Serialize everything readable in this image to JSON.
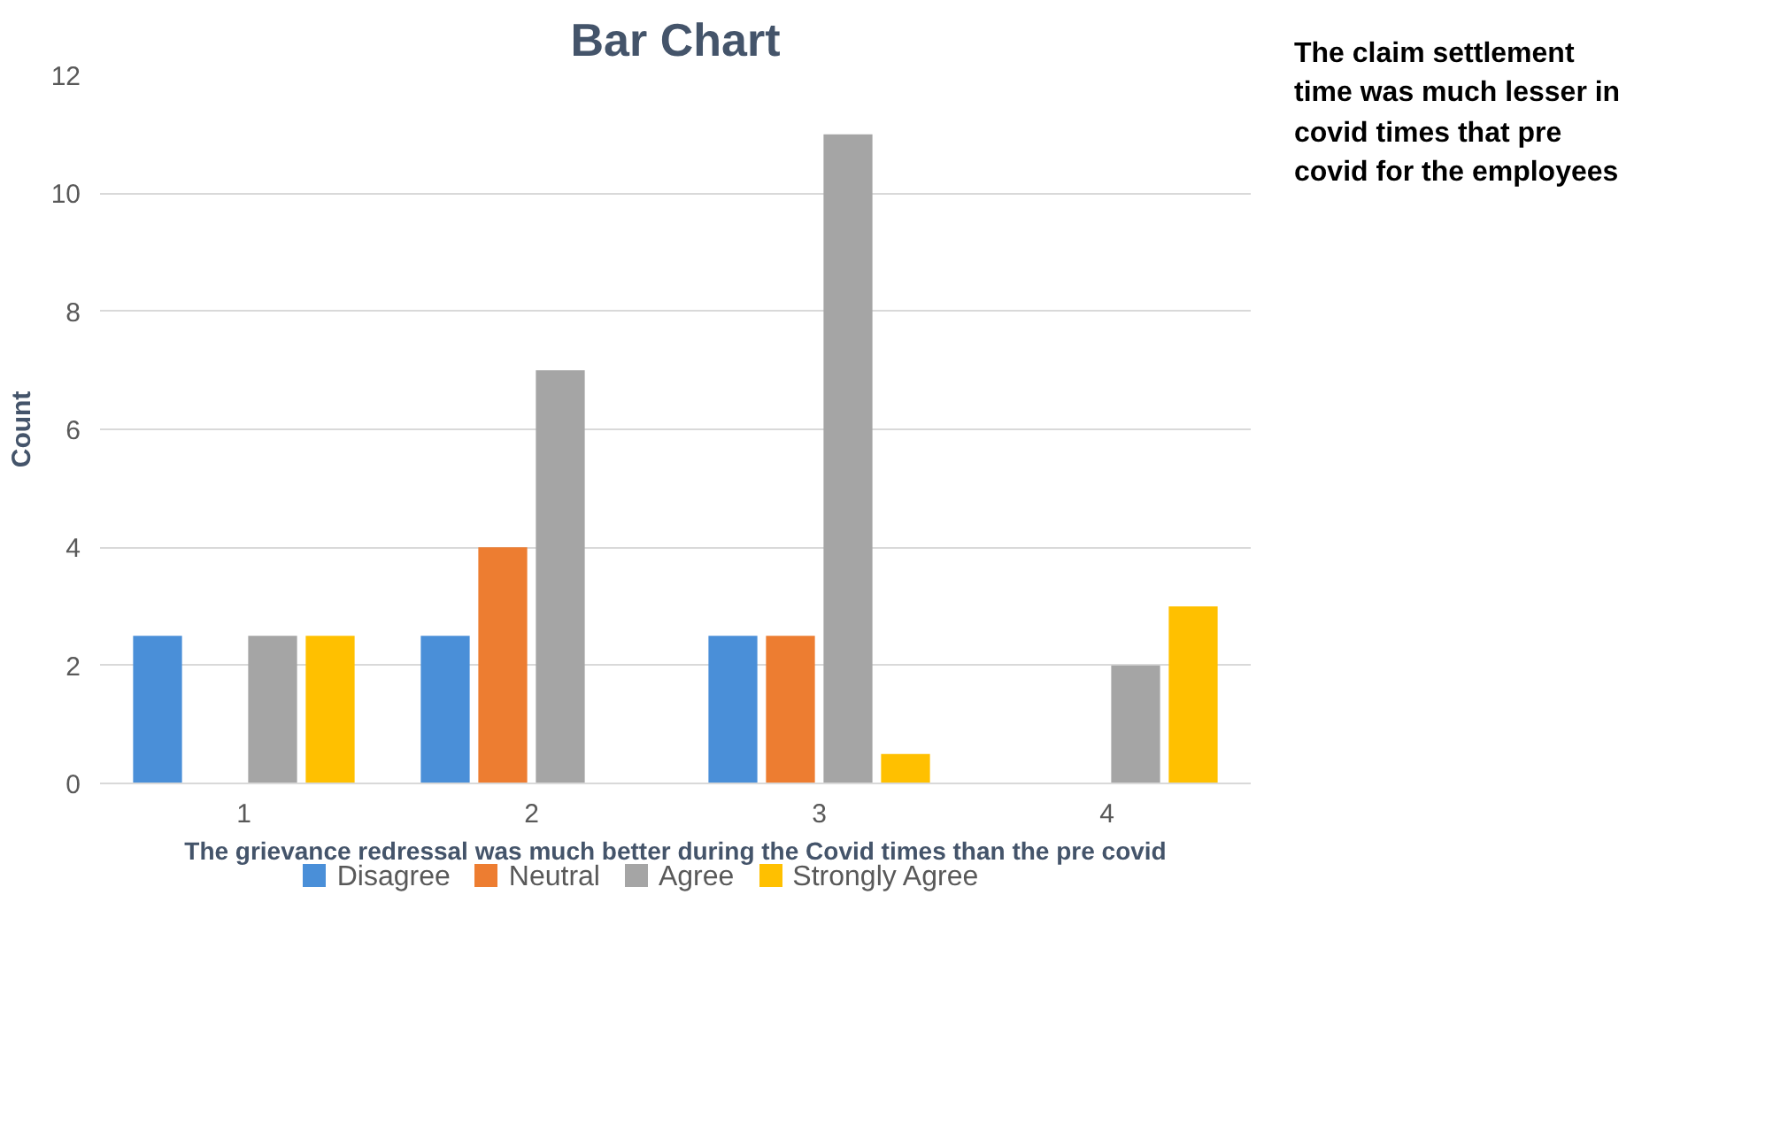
{
  "chart_data": {
    "type": "bar",
    "title": "Bar Chart",
    "xlabel": "The grievance redressal was much better during the Covid times than the pre covid",
    "ylabel": "Count",
    "categories": [
      "1",
      "2",
      "3",
      "4"
    ],
    "series": [
      {
        "name": "Disagree",
        "color": "#4a8fd8",
        "values": [
          2.5,
          2.5,
          2.5,
          null
        ]
      },
      {
        "name": "Neutral",
        "color": "#ed7d31",
        "values": [
          null,
          4,
          2.5,
          null
        ]
      },
      {
        "name": "Agree",
        "color": "#a5a5a5",
        "values": [
          2.5,
          7,
          11,
          2
        ]
      },
      {
        "name": "Strongly Agree",
        "color": "#ffc000",
        "values": [
          2.5,
          null,
          0.5,
          3
        ]
      }
    ],
    "ylim": [
      0,
      12
    ],
    "yticks": [
      0,
      2,
      4,
      6,
      8,
      10,
      12
    ],
    "grid": "y",
    "legend": "bottom",
    "annotations": [
      "The claim settlement time was much lesser in covid times that pre covid for the employees"
    ]
  }
}
